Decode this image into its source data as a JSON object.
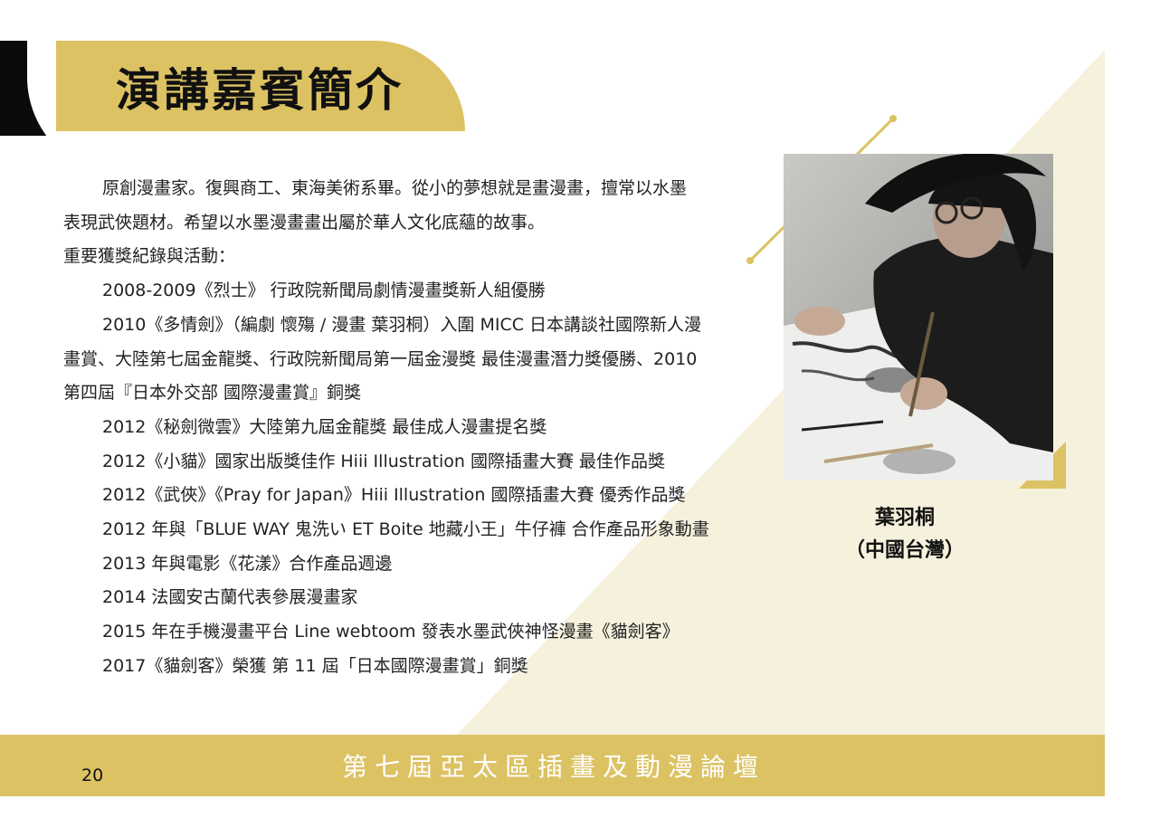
{
  "header": {
    "title": "演講嘉賓簡介"
  },
  "bio": {
    "intro_line1": "原創漫畫家。復興商工、東海美術系畢。從小的夢想就是畫漫畫，擅常以水墨",
    "intro_line2": "表現武俠題材。希望以水墨漫畫畫出屬於華人文化底蘊的故事。",
    "awards_heading": "重要獲獎紀錄與活動："
  },
  "awards": [
    "2008-2009《烈士》 行政院新聞局劇情漫畫獎新人組優勝",
    "2010《多情劍》（編劇 懷殤 / 漫畫 葉羽桐）入圍 MICC 日本講談社國際新人漫",
    "畫賞、大陸第七屆金龍獎、行政院新聞局第一屆金漫獎 最佳漫畫潛力獎優勝、2010",
    "第四屆『日本外交部 國際漫畫賞』銅獎",
    "2012《秘劍微雲》大陸第九屆金龍獎 最佳成人漫畫提名獎",
    "2012《小貓》國家出版獎佳作 Hiii Illustration 國際插畫大賽 最佳作品獎",
    "2012《武俠》《Pray for Japan》Hiii Illustration 國際插畫大賽 優秀作品獎",
    "2012 年與「BLUE WAY 鬼洗い  ET Boite 地藏小王」牛仔褲 合作產品形象動畫",
    "2013 年與電影《花漾》合作產品週邊",
    "2014 法國安古蘭代表參展漫畫家",
    "2015 年在手機漫畫平台 Line webtoom 發表水墨武俠神怪漫畫《貓劍客》",
    "2017《貓劍客》榮獲 第 11 屆「日本國際漫畫賞」銅獎"
  ],
  "speaker": {
    "name": "葉羽桐",
    "region": "（中國台灣）"
  },
  "footer": {
    "event_title": "第七屆亞太區插畫及動漫論壇",
    "page_number": "20"
  },
  "colors": {
    "accent_gold": "#dcc263",
    "cream": "#f6f1dc",
    "black": "#0b0b0b"
  }
}
